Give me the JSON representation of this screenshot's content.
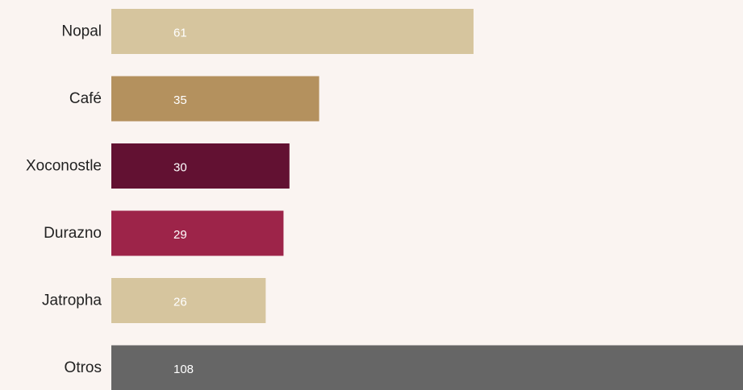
{
  "chart_data": {
    "type": "bar",
    "orientation": "horizontal",
    "categories": [
      "Nopal",
      "Café",
      "Xoconostle",
      "Durazno",
      "Jatropha",
      "Otros"
    ],
    "values": [
      61,
      35,
      30,
      29,
      26,
      108
    ],
    "colors": [
      "#D6C59E",
      "#B4915E",
      "#621132",
      "#9D2449",
      "#D6C59E",
      "#666666"
    ],
    "value_label_colors": [
      "#FFFFFF",
      "#FFFFFF",
      "#FFFFFF",
      "#FFFFFF",
      "#FFFFFF",
      "#FFFFFF"
    ],
    "background": "#FAF4F1",
    "grid": false,
    "legend": "none",
    "xlim": [
      0,
      106
    ],
    "title": "",
    "xlabel": "",
    "ylabel": ""
  }
}
